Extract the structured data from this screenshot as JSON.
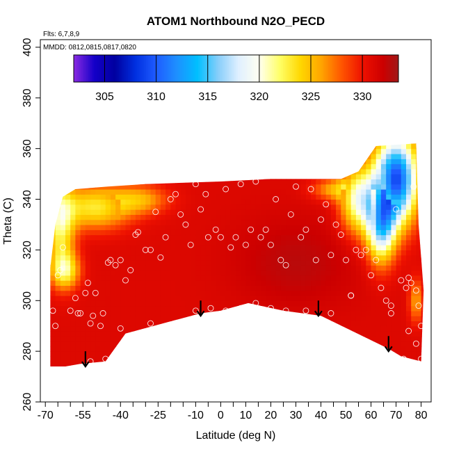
{
  "chart_data": {
    "type": "heatmap",
    "title": "ATOM1 Northbound N2O_PECD",
    "subtitle_flights": "Flts: 6,7,8,9",
    "subtitle_dates": "MMDD: 0812,0815,0817,0820",
    "xlabel": "Latitude (deg N)",
    "ylabel": "Theta (C)",
    "xlim": [
      -72,
      84
    ],
    "ylim": [
      260,
      403
    ],
    "x_ticks": [
      -70,
      -55,
      -40,
      -25,
      -10,
      0,
      10,
      20,
      30,
      40,
      50,
      60,
      70,
      80
    ],
    "x_minor_ticks": [
      -65,
      -60,
      -50,
      -45,
      -35,
      -30,
      -20,
      -15,
      -5,
      5,
      15,
      25,
      35,
      45,
      55,
      65,
      75
    ],
    "y_ticks": [
      260,
      280,
      300,
      320,
      340,
      360,
      380,
      400
    ],
    "colorbar": {
      "range": [
        302,
        333.5
      ],
      "ticks": [
        305,
        310,
        315,
        320,
        325,
        330
      ],
      "stops": [
        {
          "v": 302,
          "c": "#8a2be2"
        },
        {
          "v": 304,
          "c": "#1400c8"
        },
        {
          "v": 306,
          "c": "#0000a0"
        },
        {
          "v": 308,
          "c": "#0030e0"
        },
        {
          "v": 310,
          "c": "#1f5cff"
        },
        {
          "v": 312,
          "c": "#1e90ff"
        },
        {
          "v": 314,
          "c": "#00bfff"
        },
        {
          "v": 316,
          "c": "#87cefa"
        },
        {
          "v": 318,
          "c": "#e0f0ff"
        },
        {
          "v": 320,
          "c": "#fffff0"
        },
        {
          "v": 322,
          "c": "#ffff66"
        },
        {
          "v": 324,
          "c": "#ffd700"
        },
        {
          "v": 326,
          "c": "#ffa500"
        },
        {
          "v": 328,
          "c": "#ff5500"
        },
        {
          "v": 330,
          "c": "#ee1100"
        },
        {
          "v": 332,
          "c": "#cc0000"
        },
        {
          "v": 333.5,
          "c": "#a01818"
        }
      ]
    },
    "field_base_value": 331,
    "field_boundary": [
      [
        -68,
        274
      ],
      [
        -62,
        274
      ],
      [
        -56,
        275
      ],
      [
        -46,
        276
      ],
      [
        -38,
        287
      ],
      [
        -8,
        295
      ],
      [
        0,
        296
      ],
      [
        11,
        299
      ],
      [
        25,
        296
      ],
      [
        40,
        294
      ],
      [
        67,
        281
      ],
      [
        72,
        278
      ],
      [
        80,
        276
      ],
      [
        81,
        304
      ],
      [
        79,
        330
      ],
      [
        78,
        362
      ],
      [
        62,
        361
      ],
      [
        55,
        351
      ],
      [
        48,
        348
      ],
      [
        35,
        348
      ],
      [
        20,
        348
      ],
      [
        0,
        347
      ],
      [
        -30,
        346
      ],
      [
        -45,
        345
      ],
      [
        -58,
        344
      ],
      [
        -63,
        341
      ],
      [
        -66,
        330
      ],
      [
        -68,
        313
      ]
    ],
    "low_value_regions": [
      {
        "lat": 70,
        "theta": 348,
        "value": 309,
        "sigma_lat": 6,
        "sigma_theta": 12
      },
      {
        "lat": 64,
        "theta": 330,
        "value": 316,
        "sigma_lat": 4,
        "sigma_theta": 10
      },
      {
        "lat": 55,
        "theta": 340,
        "value": 320,
        "sigma_lat": 5,
        "sigma_theta": 9
      },
      {
        "lat": 45,
        "theta": 344,
        "value": 326,
        "sigma_lat": 6,
        "sigma_theta": 3
      },
      {
        "lat": -50,
        "theta": 337,
        "value": 323,
        "sigma_lat": 10,
        "sigma_theta": 6
      },
      {
        "lat": -64,
        "theta": 330,
        "value": 322,
        "sigma_lat": 4,
        "sigma_theta": 12
      },
      {
        "lat": -62,
        "theta": 312,
        "value": 323,
        "sigma_lat": 4,
        "sigma_theta": 5
      },
      {
        "lat": -32,
        "theta": 340,
        "value": 326,
        "sigma_lat": 8,
        "sigma_theta": 4
      },
      {
        "lat": 78,
        "theta": 300,
        "value": 326,
        "sigma_lat": 2,
        "sigma_theta": 6
      }
    ],
    "sample_points": [
      [
        -67,
        296
      ],
      [
        -66,
        290
      ],
      [
        -65,
        310
      ],
      [
        -64,
        312
      ],
      [
        -63,
        321
      ],
      [
        -60,
        296
      ],
      [
        -58,
        301
      ],
      [
        -57,
        295
      ],
      [
        -56,
        295
      ],
      [
        -54,
        303
      ],
      [
        -53,
        307
      ],
      [
        -52,
        291
      ],
      [
        -51,
        294
      ],
      [
        -50,
        303
      ],
      [
        -48,
        290
      ],
      [
        -47,
        295
      ],
      [
        -45,
        315
      ],
      [
        -44,
        316
      ],
      [
        -42,
        314
      ],
      [
        -40,
        316
      ],
      [
        -38,
        308
      ],
      [
        -36,
        312
      ],
      [
        -34,
        326
      ],
      [
        -33,
        327
      ],
      [
        -30,
        320
      ],
      [
        -28,
        320
      ],
      [
        -26,
        335
      ],
      [
        -24,
        317
      ],
      [
        -22,
        325
      ],
      [
        -20,
        340
      ],
      [
        -18,
        342
      ],
      [
        -16,
        334
      ],
      [
        -14,
        330
      ],
      [
        -12,
        322
      ],
      [
        -10,
        346
      ],
      [
        -8,
        336
      ],
      [
        -6,
        342
      ],
      [
        -5,
        325
      ],
      [
        -2,
        328
      ],
      [
        0,
        325
      ],
      [
        2,
        344
      ],
      [
        4,
        321
      ],
      [
        6,
        325
      ],
      [
        8,
        346
      ],
      [
        10,
        322
      ],
      [
        12,
        328
      ],
      [
        14,
        347
      ],
      [
        16,
        325
      ],
      [
        18,
        328
      ],
      [
        20,
        322
      ],
      [
        22,
        340
      ],
      [
        24,
        316
      ],
      [
        26,
        314
      ],
      [
        28,
        334
      ],
      [
        30,
        345
      ],
      [
        32,
        325
      ],
      [
        34,
        328
      ],
      [
        36,
        344
      ],
      [
        38,
        316
      ],
      [
        40,
        332
      ],
      [
        42,
        338
      ],
      [
        44,
        318
      ],
      [
        46,
        330
      ],
      [
        48,
        326
      ],
      [
        50,
        316
      ],
      [
        52,
        302
      ],
      [
        54,
        320
      ],
      [
        56,
        318
      ],
      [
        58,
        320
      ],
      [
        60,
        310
      ],
      [
        62,
        316
      ],
      [
        64,
        305
      ],
      [
        66,
        300
      ],
      [
        68,
        298
      ],
      [
        70,
        336
      ],
      [
        72,
        308
      ],
      [
        74,
        305
      ],
      [
        75,
        309
      ],
      [
        76,
        307
      ],
      [
        77,
        345
      ],
      [
        78,
        304
      ],
      [
        79,
        298
      ],
      [
        80,
        290
      ],
      [
        -10,
        296
      ],
      [
        -4,
        297
      ],
      [
        2,
        296
      ],
      [
        8,
        297
      ],
      [
        14,
        299
      ],
      [
        20,
        297
      ],
      [
        26,
        296
      ],
      [
        34,
        296
      ],
      [
        44,
        295
      ],
      [
        52,
        302
      ],
      [
        68,
        295
      ],
      [
        -60,
        273
      ],
      [
        -52,
        276
      ],
      [
        -46,
        277
      ],
      [
        -40,
        289
      ],
      [
        -28,
        291
      ],
      [
        75,
        288
      ],
      [
        73,
        277
      ],
      [
        80,
        277
      ],
      [
        78,
        283
      ]
    ],
    "arrows": [
      {
        "lat": -54,
        "theta_top": 280
      },
      {
        "lat": -8,
        "theta_top": 300
      },
      {
        "lat": 39,
        "theta_top": 300
      },
      {
        "lat": 67,
        "theta_top": 286
      }
    ]
  }
}
